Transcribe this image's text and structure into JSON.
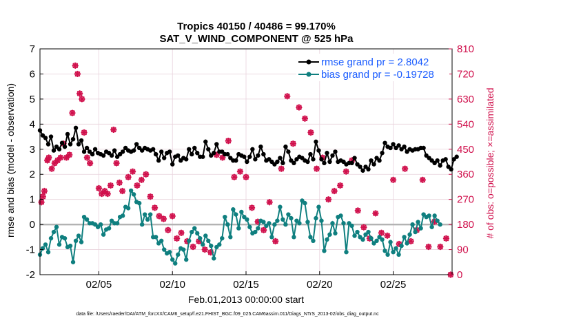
{
  "figure": {
    "footer": "data file: /Users/raeder/DAI/ATM_forcXX/CAM6_setup/f.e21.FHIST_BGC.f09_025.CAM6assim.011/Diags_NTrS_2013-02/obs_diag_output.nc"
  },
  "chart_data": {
    "type": "line",
    "title": "Tropics 40150 / 40486 = 99.170%",
    "subtitle": "SAT_V_WIND_COMPONENT @ 525 hPa",
    "xlabel": "Feb.01,2013 00:00:00 start",
    "ylabel": "rmse and bias (model - observation)",
    "ylabel_right": "# of obs: o=possible; ×=assimilated",
    "x_range": [
      1,
      29
    ],
    "x_ticks": [
      5,
      10,
      15,
      20,
      25
    ],
    "x_tick_labels": [
      "02/05",
      "02/10",
      "02/15",
      "02/20",
      "02/25"
    ],
    "ylim": [
      -2,
      7
    ],
    "y_ticks": [
      -2,
      -1,
      0,
      1,
      2,
      3,
      4,
      5,
      6,
      7
    ],
    "y_tick_labels": [
      "-2",
      "-1",
      "0",
      "1",
      "2",
      "3",
      "4",
      "5",
      "6",
      "7"
    ],
    "ylim_right": [
      0,
      810
    ],
    "y_right_ticks": [
      0,
      90,
      180,
      270,
      360,
      450,
      540,
      630,
      720,
      810
    ],
    "y_right_tick_labels": [
      "0",
      "90",
      "180",
      "270",
      "360",
      "450",
      "540",
      "630",
      "720",
      "810"
    ],
    "zero_line": 0,
    "grid": true,
    "legend_position": "top-right",
    "colors": {
      "rmse": "#000000",
      "bias": "#0f7f7f",
      "obs": "#d0104c",
      "zero": "#b3b3b3",
      "legend_text": "#1a5cff",
      "grid": "#e8d2dc"
    },
    "series": [
      {
        "name": "rmse grand pr = 2.8042",
        "axis": "left",
        "values": [
          3.75,
          3.55,
          3.45,
          3.2,
          3.5,
          2.95,
          3.1,
          3.0,
          3.25,
          3.1,
          3.6,
          3.2,
          3.4,
          3.85,
          3.2,
          3.35,
          2.9,
          3.05,
          2.9,
          2.8,
          3.0,
          2.85,
          2.8,
          2.75,
          2.9,
          2.85,
          2.75,
          2.95,
          2.7,
          2.8,
          2.9,
          3.05,
          2.95,
          2.9,
          2.95,
          3.2,
          3.05,
          2.95,
          3.05,
          3.0,
          2.95,
          3.0,
          2.8,
          2.55,
          2.9,
          2.65,
          2.85,
          2.9,
          2.4,
          2.7,
          2.75,
          2.55,
          2.65,
          2.6,
          3.0,
          2.8,
          3.05,
          2.85,
          2.7,
          2.7,
          3.3,
          3.0,
          2.75,
          2.85,
          3.2,
          2.9,
          2.9,
          2.8,
          2.8,
          2.65,
          2.55,
          2.55,
          2.8,
          2.75,
          2.7,
          2.5,
          2.7,
          3.0,
          2.6,
          2.75,
          3.1,
          2.8,
          2.55,
          2.6,
          2.5,
          2.4,
          2.5,
          2.65,
          2.45,
          3.1,
          2.9,
          2.55,
          2.45,
          2.6,
          2.7,
          2.65,
          2.55,
          2.5,
          2.8,
          2.6,
          3.3,
          2.95,
          2.6,
          2.45,
          2.85,
          2.5,
          2.75,
          2.9,
          2.5,
          2.55,
          2.5,
          2.4,
          2.45,
          2.45,
          2.65,
          2.4,
          2.3,
          2.15,
          2.3,
          2.2,
          2.55,
          2.4,
          2.65,
          2.55,
          2.85,
          3.25,
          3.1,
          3.05,
          3.2,
          3.05,
          3.15,
          3.0,
          3.1,
          2.9,
          3.0,
          2.95,
          3.0,
          3.0,
          3.05,
          3.05,
          2.75,
          2.65,
          2.55,
          2.45,
          2.55,
          2.35,
          2.55,
          2.6,
          2.3,
          2.2,
          2.6,
          2.7
        ],
        "x_start": 1.0,
        "x_step": 0.1875
      },
      {
        "name": "bias grand pr = -0.19728",
        "axis": "left",
        "values": [
          -1.2,
          -0.95,
          -0.8,
          -1.1,
          -0.55,
          -0.3,
          -0.1,
          -0.8,
          -0.5,
          -0.55,
          -0.9,
          -0.85,
          -1.5,
          -0.65,
          -0.45,
          -0.7,
          0.3,
          0.2,
          0.05,
          0.05,
          0.0,
          -0.1,
          0.0,
          -0.4,
          -0.2,
          -0.15,
          0.15,
          0.05,
          0.05,
          0.3,
          0.35,
          0.7,
          0.65,
          1.35,
          1.2,
          0.9,
          0.85,
          0.0,
          0.4,
          0.2,
          0.4,
          -0.5,
          -0.5,
          -0.75,
          -0.65,
          -1.0,
          -1.15,
          -1.1,
          -1.4,
          -1.55,
          -1.2,
          -0.95,
          -1.0,
          -1.4,
          -0.65,
          -0.3,
          -0.15,
          -0.35,
          -0.55,
          -0.8,
          -0.45,
          -0.65,
          -0.85,
          -1.35,
          -0.9,
          -0.8,
          -0.55,
          0.3,
          0.0,
          -0.5,
          0.6,
          0.4,
          -0.15,
          0.5,
          0.3,
          0.2,
          -0.1,
          -0.35,
          -0.3,
          -0.15,
          0.15,
          0.1,
          -0.05,
          0.05,
          -0.5,
          0.0,
          0.15,
          0.7,
          0.2,
          0.0,
          0.4,
          0.25,
          -0.5,
          0.15,
          0.05,
          0.95,
          0.85,
          0.1,
          -0.5,
          -0.65,
          0.25,
          0.7,
          0.15,
          -1.05,
          -0.6,
          -0.4,
          0.05,
          -0.35,
          0.3,
          0.35,
          0.05,
          -1.1,
          0.05,
          -0.05,
          -0.45,
          -0.3,
          -0.5,
          -0.6,
          -0.4,
          -0.3,
          -0.55,
          -0.75,
          -0.65,
          -0.5,
          -0.6,
          -1.05,
          -1.2,
          -0.7,
          -1.1,
          -0.95,
          -1.2,
          -0.85,
          -0.5,
          -0.75,
          -0.4,
          0.0,
          -0.3,
          0.1,
          -0.15,
          0.4,
          0.3,
          0.35,
          -0.1,
          0.35,
          0.15,
          0.0
        ],
        "x_start": 1.0,
        "x_step": 0.1875
      }
    ],
    "obs_points": {
      "axis": "right",
      "x": [
        1.1,
        1.2,
        1.3,
        1.5,
        1.6,
        1.8,
        2.0,
        2.2,
        2.4,
        2.6,
        2.8,
        3.0,
        3.2,
        3.4,
        3.55,
        3.7,
        3.85,
        4.0,
        4.2,
        4.4,
        5.0,
        5.2,
        5.4,
        5.6,
        5.8,
        6.0,
        6.2,
        6.4,
        6.6,
        7.0,
        7.3,
        7.6,
        7.9,
        8.2,
        8.5,
        8.8,
        9.1,
        9.4,
        9.7,
        10.0,
        10.3,
        10.6,
        11.0,
        11.4,
        11.8,
        12.2,
        12.6,
        13.0,
        13.4,
        13.8,
        14.2,
        14.6,
        15.0,
        15.4,
        15.8,
        16.2,
        16.6,
        17.0,
        17.4,
        17.8,
        18.2,
        18.6,
        19.0,
        19.4,
        19.8,
        20.2,
        20.6,
        21.0,
        21.4,
        21.8,
        22.2,
        22.6,
        23.0,
        23.4,
        23.8,
        24.2,
        24.6,
        25.0,
        25.4,
        25.8,
        26.2,
        26.6,
        27.0,
        27.4,
        27.8,
        28.2,
        28.6,
        28.9
      ],
      "values": [
        260,
        280,
        300,
        410,
        420,
        380,
        400,
        410,
        420,
        470,
        420,
        430,
        580,
        750,
        720,
        650,
        630,
        510,
        420,
        400,
        310,
        290,
        300,
        290,
        320,
        520,
        400,
        330,
        300,
        350,
        370,
        320,
        340,
        360,
        280,
        240,
        210,
        200,
        160,
        210,
        130,
        150,
        120,
        100,
        120,
        90,
        80,
        430,
        420,
        480,
        350,
        370,
        350,
        240,
        190,
        160,
        260,
        120,
        380,
        640,
        470,
        600,
        560,
        510,
        380,
        420,
        270,
        300,
        320,
        370,
        410,
        230,
        170,
        130,
        220,
        150,
        140,
        340,
        110,
        380,
        120,
        160,
        340,
        100,
        190,
        100,
        130,
        0
      ]
    }
  }
}
